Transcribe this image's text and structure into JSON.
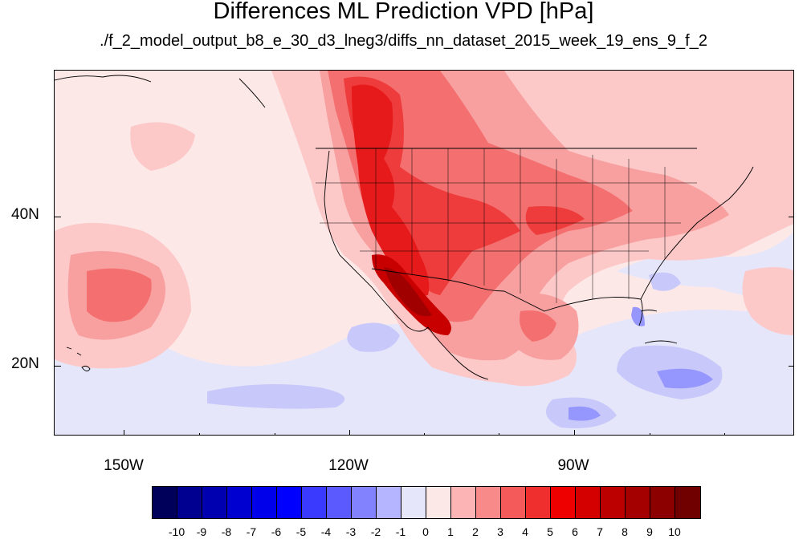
{
  "title": "Differences ML Prediction VPD [hPa]",
  "subtitle": "./f_2_model_output_b8_e_30_d3_lneg3/diffs_nn_dataset_2015_week_19_ens_9_f_2",
  "lon_labels": [
    "150W",
    "120W",
    "90W"
  ],
  "lat_labels": [
    "40N",
    "20N"
  ],
  "colorbar": {
    "colors": [
      "#00005a",
      "#000090",
      "#0000b0",
      "#0000d0",
      "#0000ea",
      "#0000ff",
      "#3a3aff",
      "#5a5aff",
      "#8282ff",
      "#b4b4ff",
      "#e6e6fa",
      "#fde8e8",
      "#fcb4b4",
      "#f88a8a",
      "#f45a5a",
      "#ef2e2e",
      "#ee0000",
      "#d40000",
      "#bc0000",
      "#a40000",
      "#8c0000",
      "#700000"
    ],
    "labels": [
      "-10",
      "-9",
      "-8",
      "-7",
      "-6",
      "-5",
      "-4",
      "-3",
      "-2",
      "-1",
      "0",
      "1",
      "2",
      "3",
      "4",
      "5",
      "6",
      "7",
      "8",
      "9",
      "10"
    ]
  },
  "map": {
    "background": "#fde8e8",
    "positive_colors": [
      "#fcc8c8",
      "#f8a0a0",
      "#f47070",
      "#ee3c3c",
      "#e61a1a",
      "#c80000",
      "#a00000"
    ],
    "negative_colors": [
      "#e6e6fa",
      "#c8c8fa",
      "#9696ff",
      "#6464f0"
    ]
  }
}
